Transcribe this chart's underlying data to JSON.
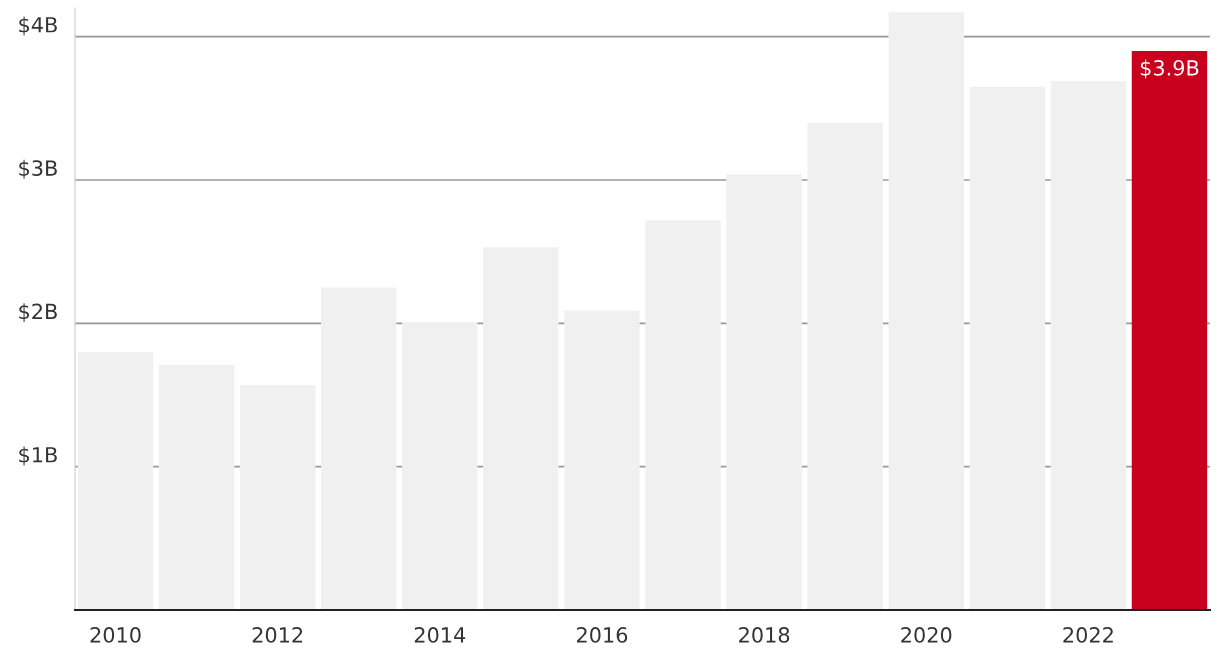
{
  "chart_data": {
    "type": "bar",
    "categories": [
      "2010",
      null,
      "2012",
      null,
      "2014",
      null,
      "2016",
      null,
      "2018",
      null,
      "2020",
      null,
      "2022",
      null
    ],
    "values": [
      1.8,
      1.71,
      1.57,
      2.25,
      2.01,
      2.53,
      2.09,
      2.72,
      3.04,
      3.4,
      4.17,
      3.65,
      3.69,
      3.9
    ],
    "colors": [
      "#f0f0f0",
      "#f0f0f0",
      "#f0f0f0",
      "#f0f0f0",
      "#f0f0f0",
      "#f0f0f0",
      "#f0f0f0",
      "#f0f0f0",
      "#f0f0f0",
      "#f0f0f0",
      "#f0f0f0",
      "#f0f0f0",
      "#f0f0f0",
      "#c8001e"
    ],
    "value_labels": [
      null,
      null,
      null,
      null,
      null,
      null,
      null,
      null,
      null,
      null,
      null,
      null,
      null,
      "$3.9B"
    ],
    "ylim": [
      0,
      4.2
    ],
    "yticks": [
      {
        "value": 1,
        "label": "$1B"
      },
      {
        "value": 2,
        "label": "$2B"
      },
      {
        "value": 3,
        "label": "$3B"
      },
      {
        "value": 4,
        "label": "$4B"
      }
    ],
    "grid": "y"
  }
}
